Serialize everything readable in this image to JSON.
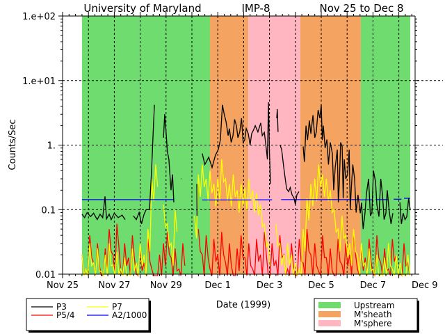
{
  "chart_data": {
    "type": "line",
    "title_parts": [
      "University of Maryland",
      "IMP-8",
      "Nov 25 to Dec 8"
    ],
    "xlabel": "Date (1999)",
    "ylabel": "Counts/Sec",
    "yscale": "log",
    "ylim": [
      0.01,
      100
    ],
    "xlim_days_from_nov25": [
      0,
      13.63
    ],
    "x_tick_labels": [
      {
        "day": 0,
        "label": "Nov 25"
      },
      {
        "day": 2,
        "label": "Nov 27"
      },
      {
        "day": 4,
        "label": "Nov 29"
      },
      {
        "day": 6,
        "label": "Dec 1"
      },
      {
        "day": 8,
        "label": "Dec 3"
      },
      {
        "day": 10,
        "label": "Dec 5"
      },
      {
        "day": 12,
        "label": "Dec 7"
      },
      {
        "day": 14,
        "label": "Dec 9"
      }
    ],
    "y_tick_labels": [
      {
        "value": 100,
        "label": "1.e+02"
      },
      {
        "value": 10,
        "label": "1.e+01"
      },
      {
        "value": 1,
        "label": "1."
      },
      {
        "value": 0.1,
        "label": "0.1"
      },
      {
        "value": 0.01,
        "label": "0.01"
      }
    ],
    "grid": "dotted, at day boundaries and decades",
    "regions": [
      {
        "name": "Upstream",
        "start": 0.75,
        "end": 5.7,
        "color": "#6fdc6f"
      },
      {
        "name": "M'sheath",
        "start": 5.7,
        "end": 7.18,
        "color": "#f4a460"
      },
      {
        "name": "M'sphere",
        "start": 7.18,
        "end": 9.19,
        "color": "#ffb6c1"
      },
      {
        "name": "M'sheath",
        "start": 9.19,
        "end": 11.53,
        "color": "#f4a460"
      },
      {
        "name": "Upstream",
        "start": 11.53,
        "end": 13.44,
        "color": "#6fdc6f"
      }
    ],
    "series": [
      {
        "name": "P3",
        "color": "#000000",
        "points": [
          [
            0.75,
            0.085
          ],
          [
            0.85,
            0.075
          ],
          [
            0.95,
            0.09
          ],
          [
            1.08,
            0.078
          ],
          [
            1.2,
            0.088
          ],
          [
            1.34,
            0.07
          ],
          [
            1.45,
            0.085
          ],
          [
            1.55,
            0.075
          ],
          [
            1.64,
            0.16
          ],
          [
            1.7,
            0.072
          ],
          [
            1.8,
            0.085
          ],
          [
            1.88,
            0.07
          ],
          [
            2.0,
            0.088
          ],
          [
            2.15,
            0.075
          ],
          [
            2.3,
            0.082
          ],
          [
            2.42,
            0.07
          ],
          null,
          [
            2.74,
            0.08
          ],
          [
            2.85,
            0.07
          ],
          [
            2.96,
            0.09
          ],
          [
            3.05,
            0.06
          ],
          [
            3.15,
            0.085
          ],
          [
            3.23,
            0.1
          ],
          [
            3.36,
            0.1
          ],
          [
            3.44,
            0.4
          ],
          [
            3.5,
            1.5
          ],
          [
            3.55,
            4.2
          ],
          null,
          [
            3.9,
            1.3
          ],
          [
            3.95,
            3.0
          ],
          [
            4.0,
            1.6
          ],
          [
            4.05,
            0.8
          ],
          [
            4.11,
            0.6
          ],
          [
            4.19,
            0.2
          ],
          [
            4.25,
            0.35
          ],
          [
            4.3,
            0.13
          ],
          null,
          [
            4.57,
            0.3
          ],
          [
            4.59,
            0.3
          ],
          null,
          [
            5.19,
            0.25
          ],
          [
            5.2,
            0.08
          ],
          null,
          [
            5.4,
            0.74
          ],
          [
            5.5,
            0.5
          ],
          [
            5.65,
            0.65
          ],
          [
            5.78,
            0.45
          ],
          [
            5.91,
            0.7
          ],
          [
            6.02,
            0.85
          ],
          [
            6.1,
            1.2
          ],
          [
            6.18,
            4.2
          ],
          [
            6.25,
            3.0
          ],
          [
            6.32,
            2.3
          ],
          [
            6.4,
            1.4
          ],
          [
            6.45,
            1.8
          ],
          [
            6.52,
            1.1
          ],
          [
            6.59,
            1.4
          ],
          [
            6.65,
            2.5
          ],
          [
            6.72,
            2.0
          ],
          [
            6.78,
            1.3
          ],
          [
            6.85,
            1.6
          ],
          [
            6.92,
            2.6
          ],
          [
            6.98,
            1.1
          ],
          [
            7.04,
            1.2
          ],
          [
            7.1,
            1.8
          ],
          [
            7.18,
            1.5
          ],
          [
            7.25,
            1.0
          ],
          [
            7.31,
            1.5
          ],
          [
            7.38,
            1.7
          ],
          [
            7.45,
            2.0
          ],
          [
            7.55,
            1.6
          ],
          [
            7.66,
            2.2
          ],
          [
            7.72,
            1.4
          ],
          [
            7.8,
            1.57
          ],
          [
            7.88,
            0.85
          ],
          [
            7.92,
            0.6
          ],
          [
            7.96,
            4.6
          ],
          [
            8.0,
            0.74
          ],
          [
            8.04,
            0.25
          ],
          null,
          [
            8.28,
            2.6
          ],
          [
            8.3,
            3.6
          ],
          [
            8.33,
            1.6
          ],
          null,
          [
            8.41,
            1.0
          ],
          [
            8.47,
            0.85
          ],
          [
            8.55,
            0.45
          ],
          [
            8.6,
            0.32
          ],
          [
            8.66,
            0.21
          ],
          [
            8.74,
            0.19
          ],
          [
            8.8,
            0.22
          ],
          [
            8.87,
            0.17
          ],
          [
            8.95,
            0.15
          ],
          [
            9.0,
            0.12
          ],
          [
            9.06,
            0.17
          ],
          [
            9.14,
            0.19
          ],
          null,
          [
            9.3,
            0.95
          ],
          [
            9.35,
            0.55
          ],
          [
            9.41,
            2.0
          ],
          [
            9.47,
            1.2
          ],
          [
            9.54,
            2.4
          ],
          [
            9.6,
            1.5
          ],
          [
            9.68,
            2.9
          ],
          [
            9.75,
            1.3
          ],
          [
            9.81,
            1.6
          ],
          [
            9.88,
            3.5
          ],
          [
            9.95,
            2.6
          ],
          [
            10.0,
            4.2
          ],
          [
            10.04,
            1.2
          ],
          [
            10.08,
            2.0
          ],
          [
            10.15,
            0.9
          ],
          [
            10.22,
            1.22
          ],
          [
            10.28,
            0.5
          ],
          [
            10.35,
            1.1
          ],
          [
            10.43,
            0.74
          ],
          [
            10.48,
            0.2
          ],
          [
            10.54,
            0.45
          ],
          [
            10.62,
            0.85
          ],
          [
            10.66,
            0.13
          ],
          [
            10.7,
            0.25
          ],
          [
            10.75,
            1.1
          ],
          [
            10.81,
            0.95
          ],
          [
            10.85,
            0.15
          ],
          [
            10.89,
            0.6
          ],
          [
            10.95,
            0.3
          ],
          [
            11.02,
            0.35
          ],
          [
            11.08,
            0.85
          ],
          [
            11.12,
            0.1
          ],
          [
            11.16,
            0.21
          ],
          [
            11.22,
            0.5
          ],
          [
            11.29,
            0.3
          ],
          [
            11.35,
            0.09
          ],
          [
            11.42,
            0.17
          ],
          [
            11.51,
            0.088
          ],
          [
            11.56,
            0.128
          ],
          [
            11.62,
            0.05
          ],
          [
            11.69,
            0.088
          ],
          [
            11.75,
            0.18
          ],
          [
            11.83,
            0.3
          ],
          [
            11.9,
            0.08
          ],
          [
            11.96,
            0.09
          ],
          [
            12.02,
            0.4
          ],
          [
            12.1,
            0.27
          ],
          [
            12.15,
            0.12
          ],
          [
            12.23,
            0.078
          ],
          [
            12.3,
            0.3
          ],
          [
            12.37,
            0.165
          ],
          [
            12.43,
            0.07
          ],
          [
            12.5,
            0.088
          ],
          [
            12.55,
            0.2
          ],
          [
            12.63,
            0.095
          ],
          [
            12.7,
            0.06
          ],
          [
            12.77,
            0.088
          ],
          null,
          [
            13.04,
            0.13
          ],
          [
            13.1,
            0.06
          ],
          [
            13.17,
            0.088
          ],
          [
            13.24,
            0.07
          ],
          [
            13.31,
            0.078
          ],
          [
            13.38,
            0.15
          ],
          [
            13.44,
            0.1
          ]
        ]
      },
      {
        "name": "P5/4",
        "color": "#ff0000",
        "start_day": 0.75,
        "step_days": 0.15,
        "values": [
          0.02,
          0.012,
          0.04,
          0.015,
          0.03,
          0.009,
          0.025,
          0.05,
          0.02,
          0.06,
          0.011,
          0.03,
          0.018,
          0.04,
          0.01,
          0.025,
          0.015,
          0.035,
          0.012,
          0.008,
          0.02,
          0.03,
          0.045,
          0.018,
          0.025,
          0.012,
          0.03,
          null,
          null,
          null,
          0.05,
          0.02,
          0.04,
          0.012,
          0.035,
          0.02,
          0.045,
          0.015,
          0.03,
          0.009,
          0.025,
          0.04,
          0.018,
          0.03,
          0.012,
          0.035,
          0.02,
          0.045,
          0.01,
          0.03,
          0.016,
          0.04,
          0.02,
          0.012,
          0.03,
          0.008,
          0.035,
          0.015,
          0.05,
          0.02,
          0.03,
          0.011,
          0.04,
          0.018,
          0.025,
          0.009,
          0.035,
          0.014,
          0.03,
          0.02,
          0.045,
          0.012,
          0.025,
          0.018,
          0.035,
          0.01,
          0.04,
          0.015,
          0.025,
          0.012,
          0.035,
          0.02,
          0.01,
          0.03,
          0.015
        ]
      },
      {
        "name": "P7",
        "color": "#ffff00",
        "start_day": 0.75,
        "step_days": 0.15,
        "values": [
          0.02,
          0.012,
          0.03,
          0.015,
          0.025,
          0.011,
          0.02,
          0.03,
          0.014,
          0.022,
          0.012,
          0.018,
          0.01,
          0.025,
          0.015,
          0.03,
          0.02,
          0.05,
          0.3,
          0.5,
          null,
          0.12,
          0.06,
          0.03,
          0.1,
          null,
          null,
          null,
          null,
          0.08,
          0.35,
          0.5,
          0.3,
          0.4,
          0.25,
          0.3,
          0.6,
          0.3,
          0.25,
          0.35,
          0.2,
          0.25,
          0.22,
          0.3,
          0.2,
          0.18,
          0.12,
          0.06,
          0.03,
          null,
          0.06,
          0.03,
          0.02,
          0.03,
          0.02,
          0.015,
          0.012,
          0.05,
          0.15,
          0.25,
          0.3,
          0.5,
          0.35,
          0.3,
          0.2,
          0.1,
          0.05,
          0.08,
          0.04,
          0.03,
          0.05,
          0.02,
          0.03,
          0.015,
          0.025,
          0.012,
          0.02,
          0.01,
          0.018,
          0.03,
          0.012,
          0.02,
          0.015,
          0.01,
          0.02
        ]
      },
      {
        "name": "A2/1000",
        "color": "#0000ff",
        "segments": [
          [
            0.75,
            4.3,
            0.143
          ],
          [
            5.4,
            7.3,
            0.141
          ],
          [
            7.45,
            8.1,
            0.142
          ],
          [
            8.45,
            11.5,
            0.143
          ],
          [
            11.5,
            12.0,
            0.142
          ],
          [
            12.1,
            12.6,
            0.143
          ],
          [
            12.8,
            13.1,
            0.145
          ],
          [
            13.2,
            13.44,
            0.15
          ]
        ]
      }
    ],
    "legend_left": [
      {
        "label": "P3",
        "color": "#000000"
      },
      {
        "label": "P5/4",
        "color": "#ff0000"
      },
      {
        "label": "P7",
        "color": "#ffff00"
      },
      {
        "label": "A2/1000",
        "color": "#0000ff"
      }
    ],
    "legend_right": [
      {
        "label": "Upstream",
        "color": "#6fdc6f"
      },
      {
        "label": "M'sheath",
        "color": "#f4a460"
      },
      {
        "label": "M'sphere",
        "color": "#ffb6c1"
      }
    ]
  }
}
